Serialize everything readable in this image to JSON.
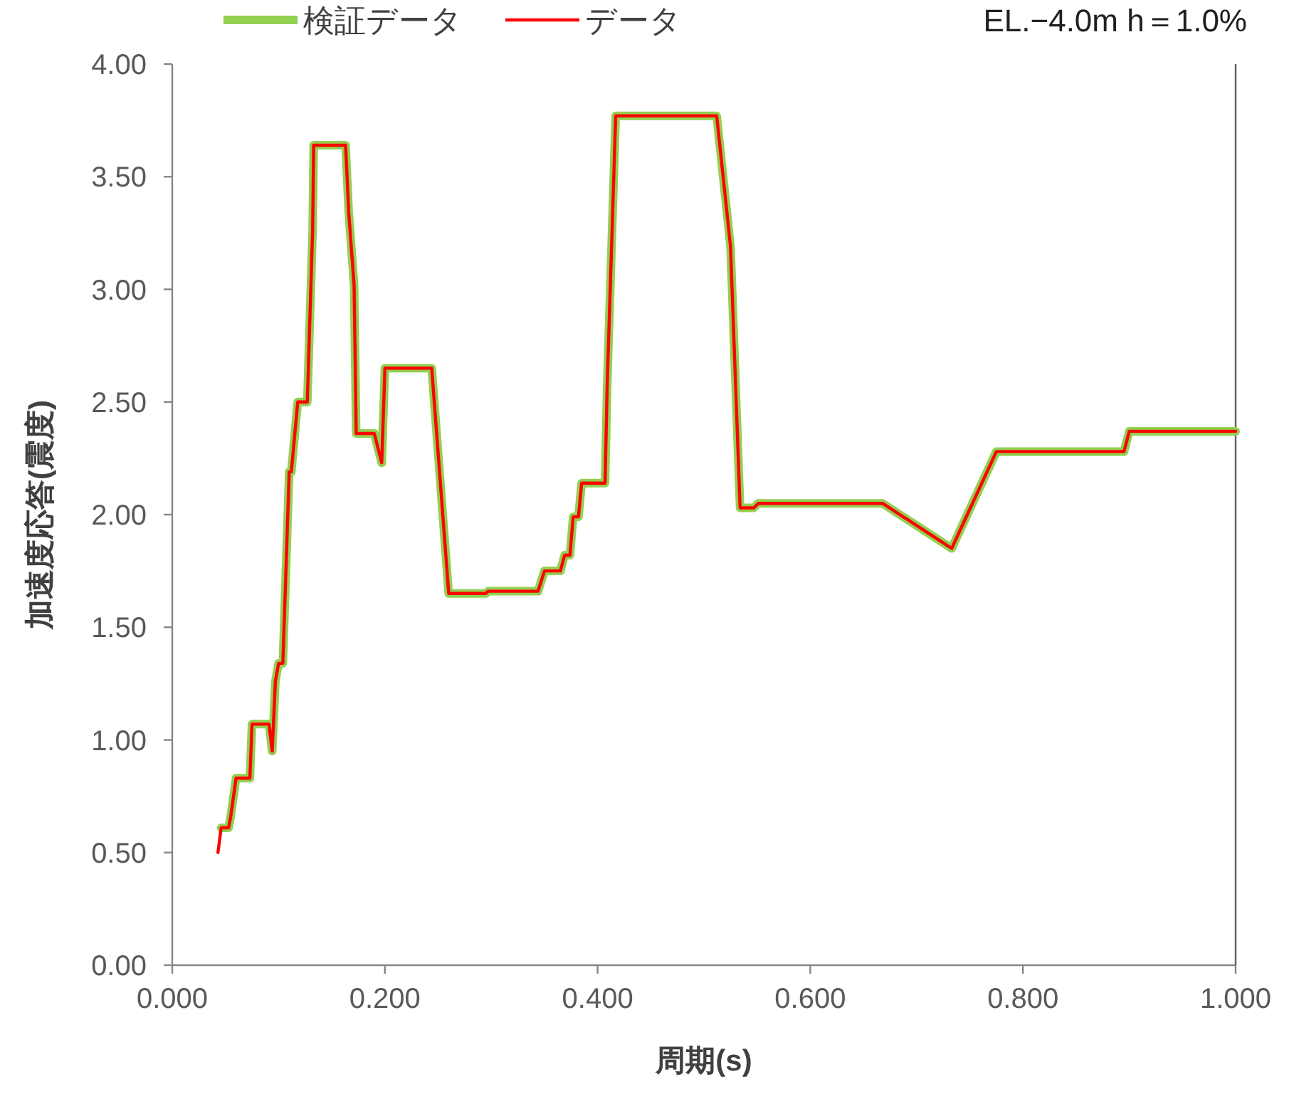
{
  "chart_data": {
    "type": "line",
    "xlabel": "周期(s)",
    "ylabel": "加速度応答(震度)",
    "annotations": [
      "EL.−4.0m h＝1.0%"
    ],
    "legend": "top",
    "xlim": [
      0,
      1
    ],
    "xticks": [
      {
        "value": 0,
        "label": "0.000"
      },
      {
        "value": 0.2,
        "label": "0.200"
      },
      {
        "value": 0.4,
        "label": "0.400"
      },
      {
        "value": 0.6,
        "label": "0.600"
      },
      {
        "value": 0.8,
        "label": "0.800"
      },
      {
        "value": 1,
        "label": "1.000"
      }
    ],
    "ylim": [
      0,
      4
    ],
    "yticks": [
      {
        "value": 0,
        "label": "0.00"
      },
      {
        "value": 0.5,
        "label": "0.50"
      },
      {
        "value": 1,
        "label": "1.00"
      },
      {
        "value": 1.5,
        "label": "1.50"
      },
      {
        "value": 2,
        "label": "2.00"
      },
      {
        "value": 2.5,
        "label": "2.50"
      },
      {
        "value": 3,
        "label": "3.00"
      },
      {
        "value": 3.5,
        "label": "3.50"
      },
      {
        "value": 4,
        "label": "4.00"
      }
    ],
    "series": [
      {
        "name": "検証データ",
        "color": "#92d050",
        "x": [
          0.046,
          0.053,
          0.055,
          0.06,
          0.073,
          0.075,
          0.091,
          0.094,
          0.097,
          0.1,
          0.104,
          0.11,
          0.112,
          0.118,
          0.127,
          0.132,
          0.133,
          0.163,
          0.166,
          0.171,
          0.173,
          0.19,
          0.197,
          0.2,
          0.244,
          0.26,
          0.295,
          0.297,
          0.344,
          0.35,
          0.365,
          0.369,
          0.374,
          0.377,
          0.382,
          0.385,
          0.407,
          0.409,
          0.417,
          0.512,
          0.525,
          0.534,
          0.547,
          0.551,
          0.668,
          0.733,
          0.775,
          0.895,
          0.9,
          1.0
        ],
        "values": [
          0.61,
          0.61,
          0.66,
          0.83,
          0.83,
          1.07,
          1.07,
          0.95,
          1.26,
          1.34,
          1.34,
          2.19,
          2.19,
          2.5,
          2.5,
          3.26,
          3.64,
          3.64,
          3.34,
          3.02,
          2.36,
          2.36,
          2.23,
          2.65,
          2.65,
          1.65,
          1.65,
          1.66,
          1.66,
          1.75,
          1.75,
          1.82,
          1.82,
          1.99,
          1.99,
          2.14,
          2.14,
          2.57,
          3.77,
          3.77,
          3.19,
          2.03,
          2.03,
          2.05,
          2.05,
          1.85,
          2.28,
          2.28,
          2.37,
          2.37
        ]
      },
      {
        "name": "データ",
        "color": "#ff0000",
        "x": [
          0.043,
          0.046,
          0.053,
          0.055,
          0.06,
          0.073,
          0.075,
          0.091,
          0.094,
          0.097,
          0.1,
          0.104,
          0.11,
          0.112,
          0.118,
          0.127,
          0.132,
          0.133,
          0.163,
          0.166,
          0.171,
          0.173,
          0.19,
          0.197,
          0.2,
          0.244,
          0.26,
          0.295,
          0.297,
          0.344,
          0.35,
          0.365,
          0.369,
          0.374,
          0.377,
          0.382,
          0.385,
          0.407,
          0.409,
          0.417,
          0.512,
          0.525,
          0.534,
          0.547,
          0.551,
          0.668,
          0.733,
          0.775,
          0.895,
          0.9,
          1.0
        ],
        "values": [
          0.5,
          0.61,
          0.61,
          0.66,
          0.83,
          0.83,
          1.07,
          1.07,
          0.95,
          1.26,
          1.34,
          1.34,
          2.19,
          2.19,
          2.5,
          2.5,
          3.26,
          3.64,
          3.64,
          3.34,
          3.02,
          2.36,
          2.36,
          2.23,
          2.65,
          2.65,
          1.65,
          1.65,
          1.66,
          1.66,
          1.75,
          1.75,
          1.82,
          1.82,
          1.99,
          1.99,
          2.14,
          2.14,
          2.57,
          3.77,
          3.77,
          3.19,
          2.03,
          2.03,
          2.05,
          2.05,
          1.85,
          2.28,
          2.28,
          2.37,
          2.37
        ]
      }
    ]
  }
}
